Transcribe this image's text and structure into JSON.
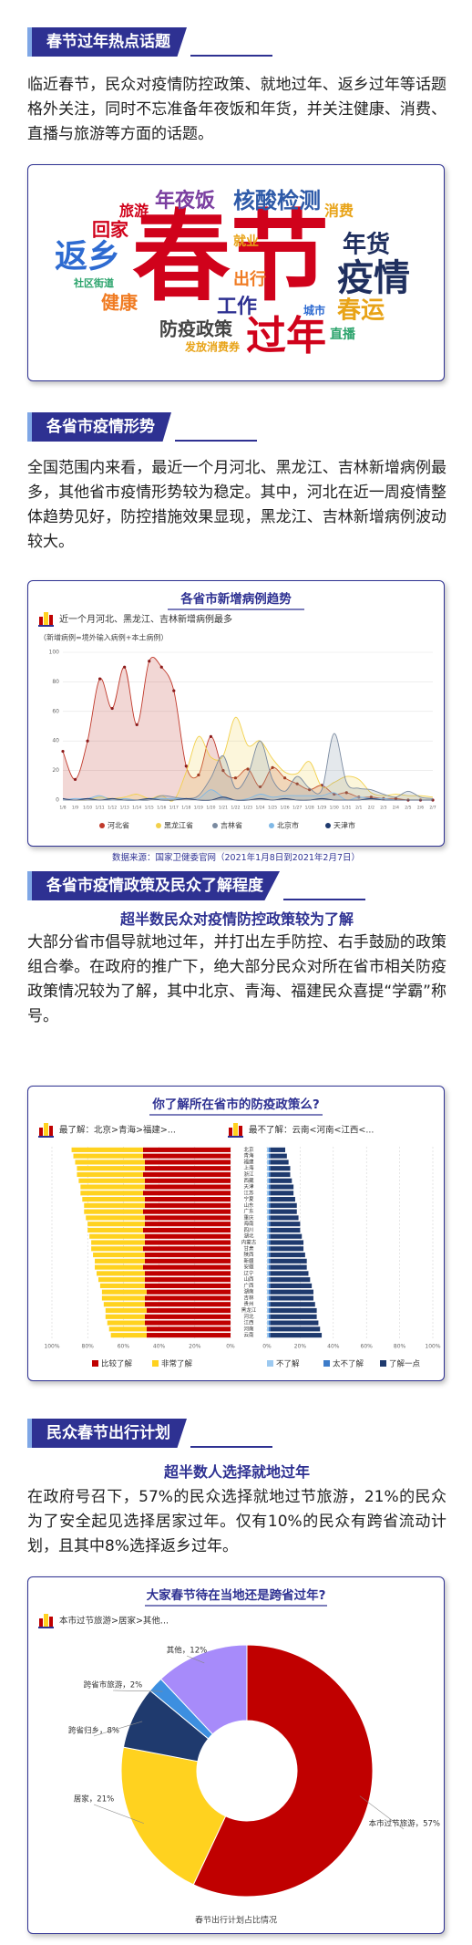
{
  "sections": [
    {
      "header": "春节过年热点话题",
      "paragraph": "临近春节，民众对疫情防控政策、就地过年、返乡过年等话题格外关注，同时不忘准备年夜饭和年货，并关注健康、消费、直播与旅游等方面的话题。",
      "word_cloud": [
        "春节",
        "过年",
        "疫情",
        "年货",
        "春运",
        "返乡",
        "核酸检测",
        "年夜饭",
        "消费",
        "旅游",
        "回家",
        "就业",
        "社区街道",
        "健康",
        "出行",
        "工作",
        "城市",
        "防疫政策",
        "发放消费券",
        "直播"
      ]
    },
    {
      "header": "各省市疫情形势",
      "paragraph": "全国范围内来看，最近一个月河北、黑龙江、吉林新增病例最多，其他省市疫情形势较为稳定。其中，河北在近一周疫情整体趋势见好，防控措施效果显现，黑龙江、吉林新增病例波动较大。"
    },
    {
      "header": "各省市疫情政策及民众了解程度",
      "subtitle": "超半数民众对疫情防控政策较为了解",
      "paragraph": "大部分省市倡导就地过年，并打出左手防控、右手鼓励的政策组合拳。在政府的推广下，绝大部分民众对所在省市相关防疫政策情况较为了解，其中北京、青海、福建民众喜提“学霸”称号。"
    },
    {
      "header": "民众春节出行计划",
      "subtitle": "超半数人选择就地过年",
      "paragraph": "在政府号召下，57%的民众选择就地过节旅游，21%的民众为了安全起见选择居家过年。仅有10%的民众有跨省流动计划，且其中8%选择返乡过年。"
    }
  ],
  "chart_data": [
    {
      "type": "area",
      "title": "各省市新增病例趋势",
      "subtitle": "近一个月河北、黑龙江、吉林新增病例最多",
      "annotation": "（新增病例=境外输入病例+本土病例）",
      "source": "数据来源：国家卫健委官网（2021年1月8日到2021年2月7日）",
      "categories": [
        "1/8",
        "1/9",
        "1/10",
        "1/11",
        "1/12",
        "1/13",
        "1/14",
        "1/15",
        "1/16",
        "1/17",
        "1/18",
        "1/19",
        "1/20",
        "1/21",
        "1/22",
        "1/23",
        "1/24",
        "1/25",
        "1/26",
        "1/27",
        "1/28",
        "1/29",
        "1/30",
        "1/31",
        "2/1",
        "2/2",
        "2/3",
        "2/4",
        "2/5",
        "2/6",
        "2/7"
      ],
      "series": [
        {
          "name": "河北省",
          "color": "#c0392b",
          "markers": true,
          "values": [
            33,
            14,
            40,
            82,
            62,
            90,
            51,
            94,
            90,
            74,
            23,
            17,
            43,
            20,
            15,
            21,
            9,
            22,
            15,
            11,
            7,
            10,
            4,
            5,
            2,
            2,
            1,
            1,
            0,
            0,
            0
          ]
        },
        {
          "name": "黑龙江省",
          "color": "#f2d04b",
          "values": [
            0,
            0,
            0,
            2,
            1,
            2,
            4,
            1,
            3,
            0,
            19,
            43,
            29,
            30,
            56,
            37,
            40,
            28,
            19,
            18,
            26,
            9,
            12,
            16,
            14,
            5,
            3,
            4,
            3,
            3,
            2
          ]
        },
        {
          "name": "吉林省",
          "color": "#7a8aa0",
          "values": [
            0,
            0,
            0,
            0,
            0,
            0,
            0,
            0,
            3,
            2,
            1,
            3,
            15,
            30,
            8,
            17,
            40,
            14,
            6,
            16,
            8,
            7,
            45,
            12,
            8,
            7,
            4,
            2,
            6,
            2,
            1
          ]
        },
        {
          "name": "北京市",
          "color": "#7fb8e6",
          "values": [
            0,
            1,
            1,
            3,
            0,
            1,
            0,
            1,
            1,
            1,
            1,
            1,
            7,
            2,
            0,
            1,
            4,
            2,
            3,
            3,
            3,
            3,
            5,
            0,
            2,
            1,
            1,
            0,
            0,
            0,
            0
          ]
        },
        {
          "name": "天津市",
          "color": "#1f3a6e",
          "values": [
            1,
            0,
            1,
            0,
            1,
            0,
            0,
            1,
            0,
            0,
            1,
            0,
            0,
            2,
            0,
            0,
            1,
            0,
            1,
            0,
            0,
            1,
            0,
            0,
            0,
            1,
            0,
            0,
            0,
            0,
            0
          ]
        }
      ],
      "ylim": [
        0,
        100
      ],
      "yticks": [
        0,
        20,
        40,
        60,
        80,
        100
      ],
      "grid": true,
      "legend": "bottom"
    },
    {
      "type": "diverging_bar",
      "title": "你了解所在省市的防疫政策么?",
      "annotations": {
        "most": "最了解：北京>青海>福建>...",
        "least": "最不了解：云南<河南<江西<..."
      },
      "categories": [
        "北京",
        "青海",
        "福建",
        "上海",
        "浙江",
        "西藏",
        "天津",
        "江苏",
        "宁夏",
        "山东",
        "广东",
        "重庆",
        "海南",
        "四川",
        "湖北",
        "内蒙古",
        "甘肃",
        "陕西",
        "新疆",
        "安徽",
        "辽宁",
        "山西",
        "广西",
        "湖南",
        "吉林",
        "贵州",
        "黑龙江",
        "河北",
        "江西",
        "河南",
        "云南"
      ],
      "series": [
        {
          "name": "比较了解",
          "color": "#c00000",
          "side": "left",
          "values": [
            49,
            49,
            48,
            48,
            49,
            48,
            48,
            49,
            48,
            48,
            49,
            48,
            48,
            49,
            48,
            48,
            49,
            48,
            48,
            49,
            48,
            48,
            48,
            47,
            48,
            48,
            47,
            48,
            48,
            47,
            47
          ]
        },
        {
          "name": "非常了解",
          "color": "#ffd21f",
          "side": "left",
          "values": [
            40,
            39,
            39,
            38,
            37,
            37,
            36,
            35,
            35,
            34,
            33,
            33,
            32,
            31,
            31,
            30,
            29,
            29,
            28,
            27,
            27,
            26,
            25,
            25,
            24,
            23,
            23,
            22,
            21,
            21,
            20
          ]
        },
        {
          "name": "不了解",
          "color": "#9cc9f0",
          "side": "right",
          "values": [
            1,
            1,
            1,
            1,
            1,
            1,
            1,
            1,
            1,
            1,
            1,
            1,
            1,
            1,
            1,
            1,
            1,
            1,
            1,
            1,
            1,
            1,
            1,
            1,
            1,
            1,
            1,
            1,
            1,
            1,
            1
          ]
        },
        {
          "name": "太不了解",
          "color": "#3d7cc9",
          "side": "right",
          "values": [
            1,
            1,
            1,
            1,
            1,
            1,
            1,
            1,
            1,
            1,
            1,
            1,
            1,
            1,
            1,
            1,
            1,
            1,
            1,
            1,
            1,
            1,
            1,
            1,
            1,
            1,
            1,
            1,
            1,
            1,
            1
          ]
        },
        {
          "name": "了解一点",
          "color": "#1f3a6e",
          "side": "right",
          "values": [
            9,
            10,
            11,
            12,
            12,
            13,
            14,
            14,
            15,
            16,
            16,
            17,
            18,
            18,
            19,
            20,
            20,
            21,
            22,
            22,
            23,
            24,
            25,
            26,
            26,
            27,
            28,
            28,
            29,
            30,
            31
          ]
        }
      ],
      "xlim": [
        0,
        100
      ],
      "xticks": [
        {
          "value": 100,
          "label": "100%"
        },
        {
          "value": 80,
          "label": "80%"
        },
        {
          "value": 60,
          "label": "60%"
        },
        {
          "value": 40,
          "label": "40%"
        },
        {
          "value": 20,
          "label": "20%"
        },
        {
          "value": 0,
          "label": "0%"
        }
      ],
      "grid": true,
      "legend": "bottom"
    },
    {
      "type": "pie",
      "donut": true,
      "title": "大家春节待在当地还是跨省过年?",
      "subtitle": "本市过节旅游>居家>其他...",
      "footer": "春节出行计划占比情况",
      "values": [
        57,
        21,
        8,
        2,
        12
      ],
      "value_labels": [
        "本市过节旅游，57%",
        "居家，21%",
        "跨省归乡，8%",
        "跨省市旅游，2%",
        "其他，12%"
      ],
      "colors": [
        "#c00000",
        "#ffd21f",
        "#1f3a6e",
        "#3d8fe0",
        "#a78bfa"
      ]
    }
  ]
}
